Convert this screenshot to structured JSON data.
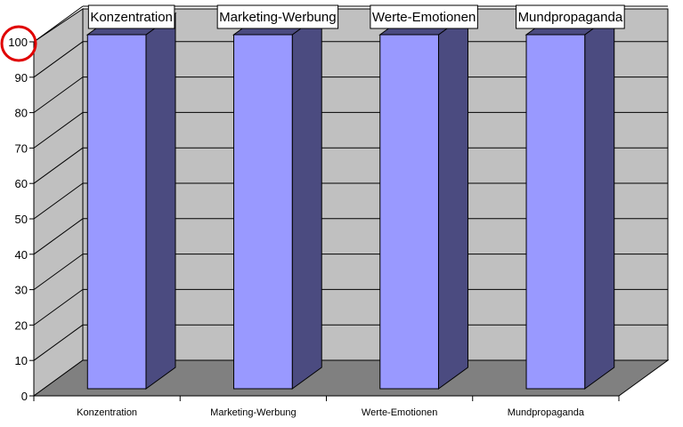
{
  "chart_data": {
    "type": "bar",
    "style": "3d-column",
    "categories": [
      "Konzentration",
      "Marketing-Werbung",
      "Werte-Emotionen",
      "Mundpropaganda"
    ],
    "values": [
      100,
      100,
      100,
      100
    ],
    "data_labels": [
      "Konzentration",
      "Marketing-Werbung",
      "Werte-Emotionen",
      "Mundpropaganda"
    ],
    "ylim": [
      0,
      100
    ],
    "yticks": [
      0,
      10,
      20,
      30,
      40,
      50,
      60,
      70,
      80,
      90,
      100
    ],
    "grid": true,
    "legend": "none",
    "annotation": {
      "type": "circle",
      "target": "y-tick-100",
      "color": "#e00000"
    },
    "colors": {
      "bar_front": "#9999ff",
      "bar_side": "#4b4b80",
      "back_wall": "#c0c0c0",
      "side_wall": "#c0c0c0",
      "floor": "#808080"
    }
  }
}
